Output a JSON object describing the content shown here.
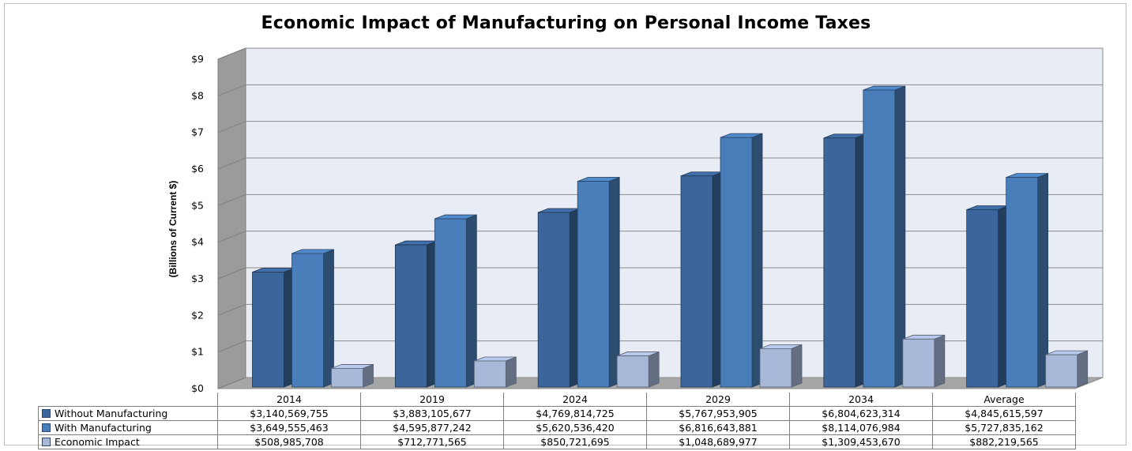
{
  "chart_data": {
    "type": "bar",
    "title": "Economic Impact of Manufacturing on Personal Income Taxes",
    "ylabel": "(Billions of Current $)",
    "xlabel": "",
    "ylim": [
      0,
      9
    ],
    "yticks": [
      "$0",
      "$1",
      "$2",
      "$3",
      "$4",
      "$5",
      "$6",
      "$7",
      "$8",
      "$9"
    ],
    "categories": [
      "2014",
      "2019",
      "2024",
      "2029",
      "2034",
      "Average"
    ],
    "grid": true,
    "legend": "data-table",
    "series": [
      {
        "name": "Without Manufacturing",
        "color": "#3b659b",
        "values": [
          3.140569755,
          3.883105677,
          4.769814725,
          5.767953905,
          6.804623314,
          4.845615597
        ],
        "labels": [
          "$3,140,569,755",
          "$3,883,105,677",
          "$4,769,814,725",
          "$5,767,953,905",
          "$6,804,623,314",
          "$4,845,615,597"
        ]
      },
      {
        "name": "With Manufacturing",
        "color": "#4a7ebb",
        "values": [
          3.649555463,
          4.595877242,
          5.62053642,
          6.816643881,
          8.114076984,
          5.727835162
        ],
        "labels": [
          "$3,649,555,463",
          "$4,595,877,242",
          "$5,620,536,420",
          "$6,816,643,881",
          "$8,114,076,984",
          "$5,727,835,162"
        ]
      },
      {
        "name": "Economic Impact",
        "color": "#a7b8d8",
        "values": [
          0.508985708,
          0.712771565,
          0.850721695,
          1.048689977,
          1.30945367,
          0.882219565
        ],
        "labels": [
          "$508,985,708",
          "$712,771,565",
          "$850,721,695",
          "$1,048,689,977",
          "$1,309,453,670",
          "$882,219,565"
        ]
      }
    ]
  }
}
